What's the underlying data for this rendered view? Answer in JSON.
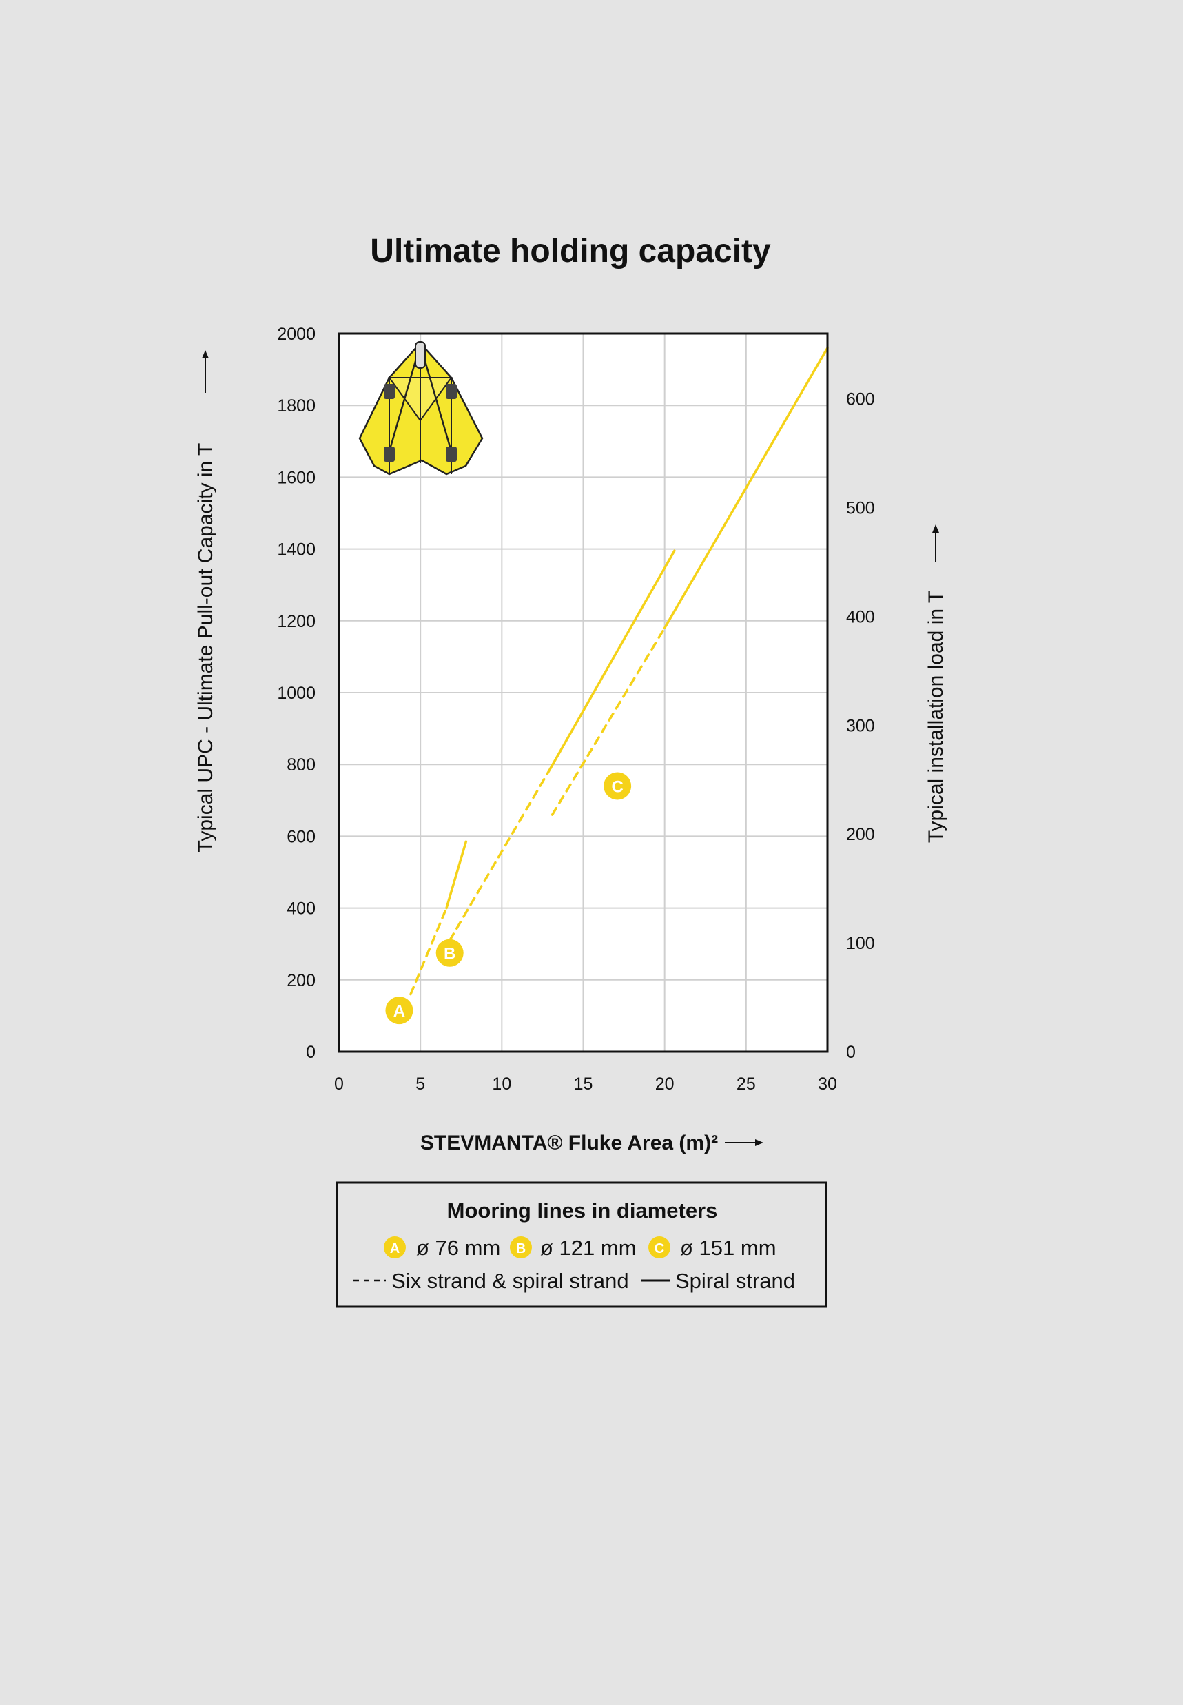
{
  "chart_data": {
    "type": "line",
    "title": "Ultimate holding capacity",
    "xlabel": "STEVMANTA® Fluke Area (m)²",
    "ylabel_left": "Typical UPC - Ultimate Pull-out Capacity in T",
    "ylabel_right": "Typical installation load in T",
    "xlim": [
      0,
      30
    ],
    "ylim_left": [
      0,
      2000
    ],
    "ylim_right": [
      0,
      660
    ],
    "x_ticks": [
      "0",
      "5",
      "10",
      "15",
      "20",
      "25",
      "30"
    ],
    "y_ticks_left": [
      "0",
      "200",
      "400",
      "600",
      "800",
      "1000",
      "1200",
      "1400",
      "1600",
      "1800",
      "2000"
    ],
    "y_ticks_right": [
      "0",
      "100",
      "200",
      "300",
      "400",
      "500",
      "600"
    ],
    "grid": true,
    "line_color": "#f5d219",
    "series": [
      {
        "name": "A",
        "style": "dashed",
        "x": [
          4.4,
          6.6
        ],
        "y": [
          160,
          400
        ]
      },
      {
        "name": "A",
        "style": "solid",
        "x": [
          6.6,
          7.8
        ],
        "y": [
          400,
          585
        ]
      },
      {
        "name": "B",
        "style": "dashed",
        "x": [
          6.8,
          13.0
        ],
        "y": [
          310,
          790
        ]
      },
      {
        "name": "B",
        "style": "solid",
        "x": [
          13.0,
          20.6
        ],
        "y": [
          790,
          1395
        ]
      },
      {
        "name": "C",
        "style": "dashed",
        "x": [
          13.1,
          20.0
        ],
        "y": [
          660,
          1180
        ]
      },
      {
        "name": "C",
        "style": "solid",
        "x": [
          20.0,
          30.0
        ],
        "y": [
          1180,
          1960
        ]
      }
    ],
    "annotations": [
      {
        "label": "A",
        "x": 3.7,
        "y": 115
      },
      {
        "label": "B",
        "x": 6.8,
        "y": 275
      },
      {
        "label": "C",
        "x": 17.1,
        "y": 740
      }
    ]
  },
  "legend": {
    "title": "Mooring lines in diameters",
    "items": [
      {
        "badge": "A",
        "text": "ø 76 mm"
      },
      {
        "badge": "B",
        "text": "ø 121 mm"
      },
      {
        "badge": "C",
        "text": "ø 151 mm"
      }
    ],
    "dashed_label": "Six strand & spiral strand",
    "solid_label": "Spiral strand"
  }
}
